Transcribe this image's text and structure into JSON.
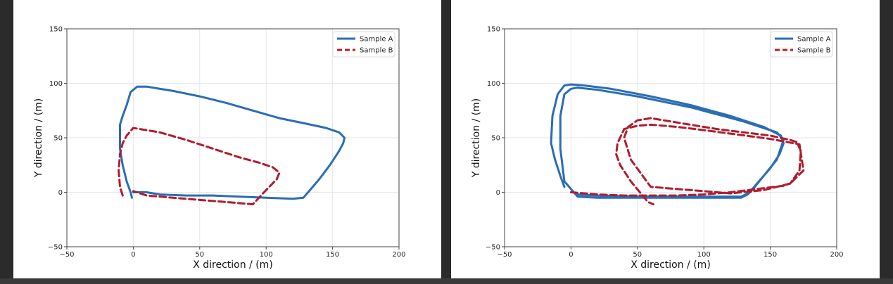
{
  "colors": {
    "sample_a": "#2a6db5",
    "sample_b": "#b01c2e",
    "grid": "#e6e6e6",
    "axis": "#444444"
  },
  "chart_data": [
    {
      "type": "line",
      "xlabel": "X direction / (m)",
      "ylabel": "Y direction / (m)",
      "xlim": [
        -50,
        200
      ],
      "ylim": [
        -50,
        150
      ],
      "xticks": [
        -50,
        0,
        50,
        100,
        150,
        200
      ],
      "yticks": [
        -50,
        0,
        50,
        100,
        150
      ],
      "grid": true,
      "legend_position": "top-right",
      "series": [
        {
          "name": "Sample A",
          "style": "solid",
          "x": [
            -1,
            -2,
            -5,
            -8,
            -10,
            -10,
            -8,
            -5,
            -2,
            3,
            10,
            30,
            50,
            70,
            90,
            110,
            130,
            145,
            155,
            159,
            158,
            155,
            148,
            140,
            133,
            128,
            120,
            100,
            80,
            60,
            40,
            20,
            10,
            0
          ],
          "y": [
            -5,
            0,
            10,
            25,
            40,
            62,
            70,
            80,
            92,
            97,
            97,
            93,
            88,
            82,
            75,
            68,
            63,
            59,
            55,
            50,
            45,
            38,
            25,
            12,
            2,
            -5,
            -6,
            -5,
            -4,
            -3,
            -3,
            -2,
            0,
            0
          ]
        },
        {
          "name": "Sample B",
          "style": "dashed",
          "x": [
            -8,
            -10,
            -11,
            -10,
            -8,
            -5,
            0,
            20,
            40,
            60,
            80,
            95,
            105,
            110,
            108,
            100,
            90,
            70,
            50,
            30,
            10,
            0
          ],
          "y": [
            -3,
            5,
            20,
            35,
            45,
            52,
            59,
            55,
            48,
            40,
            32,
            27,
            23,
            18,
            12,
            2,
            -11,
            -9,
            -7,
            -5,
            -3,
            1
          ]
        }
      ]
    },
    {
      "type": "line",
      "xlabel": "X direction / (m)",
      "ylabel": "Y direction / (m)",
      "xlim": [
        -50,
        200
      ],
      "ylim": [
        -50,
        150
      ],
      "xticks": [
        -50,
        0,
        50,
        100,
        150,
        200
      ],
      "yticks": [
        -50,
        0,
        50,
        100,
        150
      ],
      "grid": true,
      "legend_position": "top-right",
      "series": [
        {
          "name": "Sample A",
          "style": "solid",
          "x": [
            -5,
            -8,
            -12,
            -15,
            -14,
            -10,
            -5,
            0,
            10,
            30,
            60,
            90,
            120,
            145,
            158,
            160,
            157,
            150,
            140,
            133,
            128,
            120,
            100,
            80,
            60,
            40,
            20,
            5,
            -5,
            -8,
            -8,
            -5,
            0,
            5,
            20,
            50,
            90,
            130,
            155,
            160,
            155,
            145,
            135,
            128,
            110,
            80,
            50,
            20,
            5
          ],
          "y": [
            5,
            15,
            30,
            45,
            70,
            90,
            98,
            99,
            98,
            95,
            88,
            80,
            70,
            60,
            52,
            45,
            35,
            22,
            8,
            -2,
            -5,
            -5,
            -5,
            -5,
            -5,
            -5,
            -5,
            -4,
            10,
            40,
            70,
            90,
            95,
            96,
            94,
            88,
            78,
            65,
            55,
            48,
            30,
            15,
            0,
            -4,
            -4,
            -4,
            -4,
            -3,
            -2
          ]
        },
        {
          "name": "Sample B",
          "style": "dashed",
          "x": [
            0,
            20,
            40,
            60,
            80,
            100,
            120,
            140,
            160,
            165,
            172,
            173,
            170,
            165,
            150,
            130,
            110,
            90,
            70,
            60,
            50,
            43,
            40,
            45,
            60,
            80,
            100,
            120,
            145,
            165,
            175,
            172,
            163,
            150,
            125,
            100,
            80,
            60,
            50,
            40,
            35,
            34,
            37,
            45,
            58,
            62
          ],
          "y": [
            0,
            -2,
            -3,
            -3,
            -3,
            -2,
            0,
            3,
            6,
            8,
            20,
            38,
            46,
            48,
            52,
            55,
            58,
            62,
            66,
            68,
            66,
            60,
            50,
            30,
            5,
            3,
            1,
            -1,
            2,
            8,
            20,
            44,
            46,
            49,
            53,
            57,
            60,
            62,
            61,
            58,
            45,
            35,
            25,
            10,
            -9,
            -11
          ]
        }
      ]
    }
  ]
}
